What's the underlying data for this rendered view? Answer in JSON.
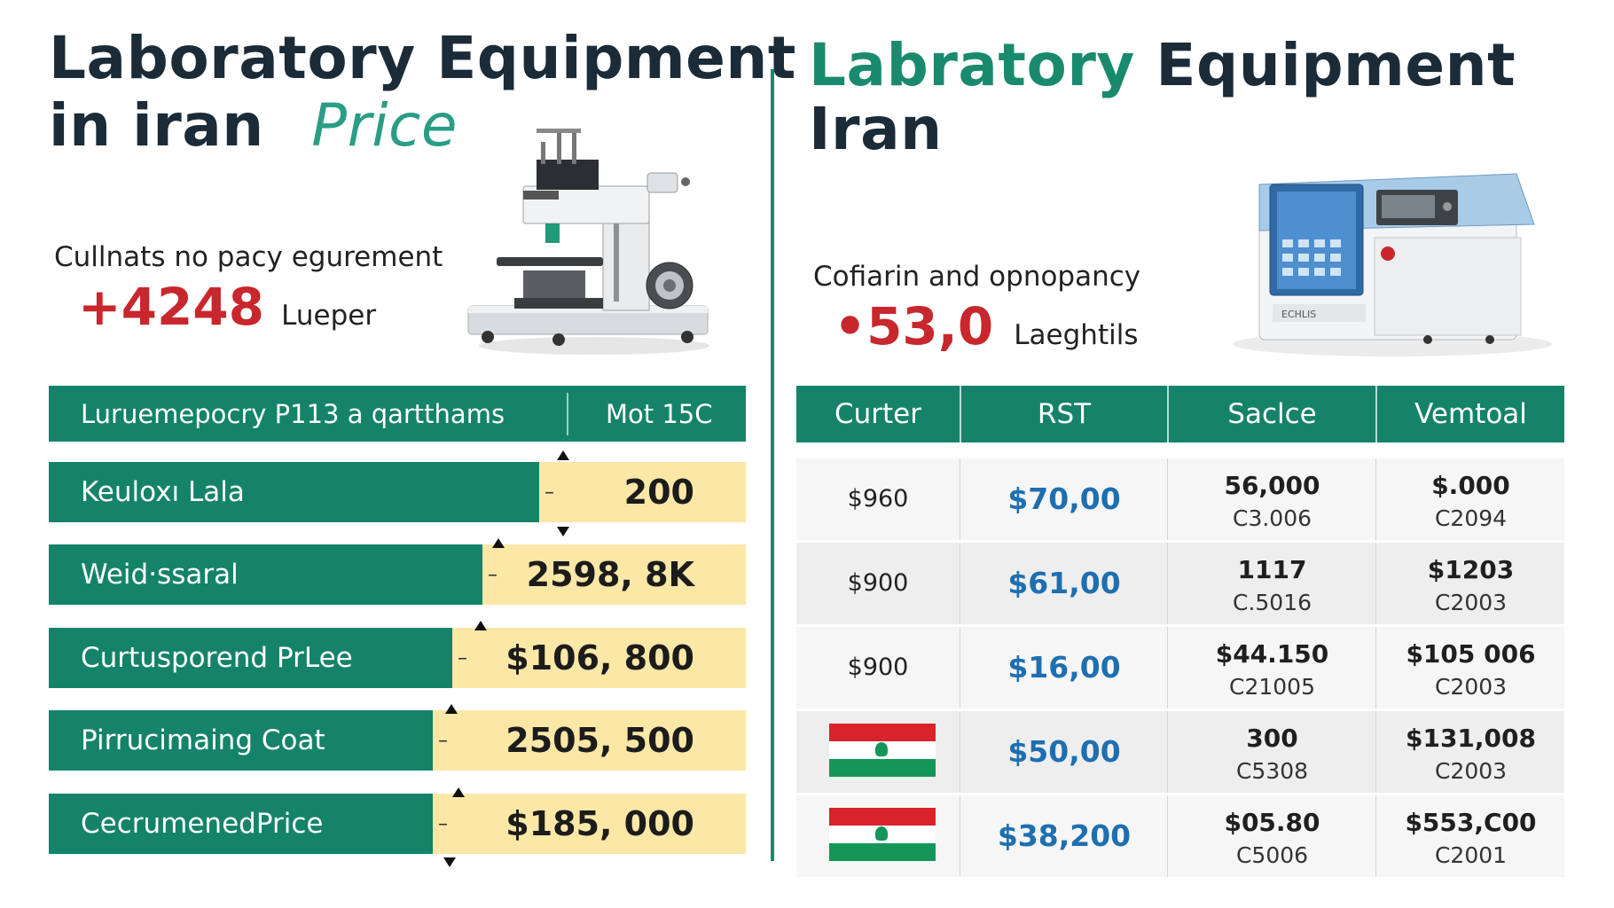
{
  "left": {
    "title_line1": "Laboratory Equipment",
    "title_line2": "in iran",
    "title_price_word": "Price",
    "subtitle": "Cullnats no pacy egurement",
    "big_number": "+4248",
    "unit": "Lueper",
    "table": {
      "header_col1": "Luruemepocry P113 a qartthams",
      "header_col2": "Mot 15C",
      "rows": [
        {
          "label": "Keuloxı Lala",
          "value": "200",
          "green_fraction": 0.703
        },
        {
          "label": "Weid·ssaral",
          "value": "2598, 8K",
          "green_fraction": 0.622
        },
        {
          "label": "Curtusporend PrLee",
          "value": "$106, 800",
          "green_fraction": 0.579
        },
        {
          "label": "Pirrucimaing Coat",
          "value": "2505, 500",
          "green_fraction": 0.551
        },
        {
          "label": "CecrumenedPrice",
          "value": "$185, 000",
          "green_fraction": 0.551
        }
      ]
    }
  },
  "right": {
    "title_accent": "Labratory",
    "title_rest": "Equipment",
    "title_line2": "Iran",
    "subtitle": "Cofiarin and opnopancy",
    "big_number": "•53,0",
    "unit": "Laeghtils",
    "table": {
      "headers": [
        "Curter",
        "RST",
        "Saclce",
        "Vemtoal"
      ],
      "rows": [
        {
          "col1": "$960",
          "col1_flag": false,
          "rst": "$70,00",
          "c3_top": "56,000",
          "c3_bot": "C3.006",
          "c4_top": "$.000",
          "c4_bot": "C2094"
        },
        {
          "col1": "$900",
          "col1_flag": false,
          "rst": "$61,00",
          "c3_top": "1117",
          "c3_bot": "C.5016",
          "c4_top": "$1203",
          "c4_bot": "C2003"
        },
        {
          "col1": "$900",
          "col1_flag": false,
          "rst": "$16,00",
          "c3_top": "$44.150",
          "c3_bot": "C21005",
          "c4_top": "$105 006",
          "c4_bot": "C2003"
        },
        {
          "col1": "",
          "col1_flag": true,
          "rst": "$50,00",
          "c3_top": "300",
          "c3_bot": "C5308",
          "c4_top": "$131,008",
          "c4_bot": "C2003"
        },
        {
          "col1": "",
          "col1_flag": true,
          "rst": "$38,200",
          "c3_top": "$05.80",
          "c3_bot": "C5006",
          "c4_top": "$553,C00",
          "c4_bot": "C2001"
        }
      ]
    },
    "device_panel_label": "ECHLIS"
  },
  "colors": {
    "primary_green": "#148369",
    "accent_teal": "#2a9d86",
    "highlight_yellow": "#fbe7a6",
    "alert_red": "#c8272d",
    "value_blue": "#1e6fb0",
    "dark_text": "#1b2b38"
  },
  "icons": [
    "microscope-image",
    "lab-analyzer-image",
    "iran-flag-icon"
  ]
}
